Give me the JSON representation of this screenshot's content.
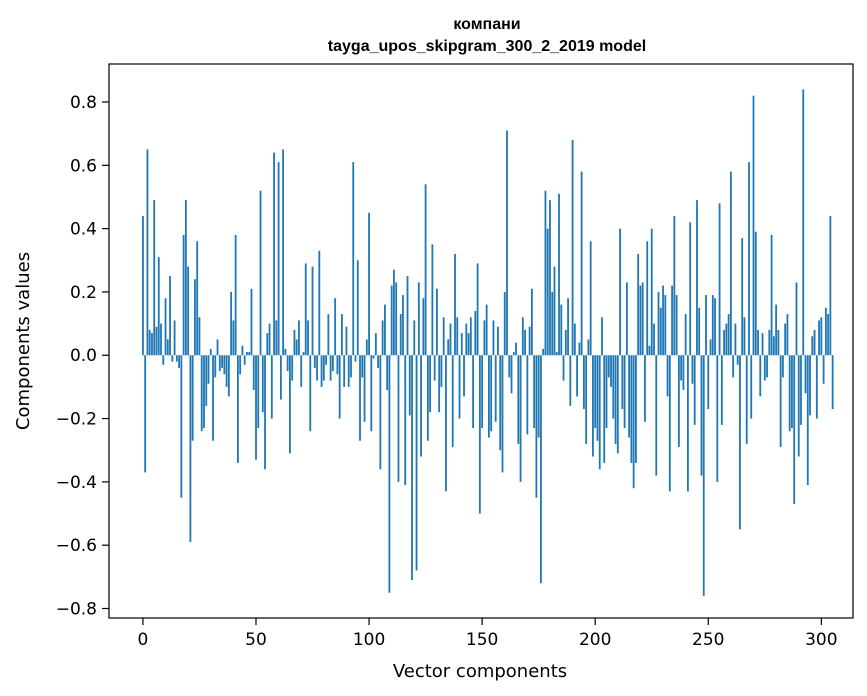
{
  "chart_data": {
    "type": "bar",
    "title": "компани",
    "subtitle": "tayga_upos_skipgram_300_2_2019 model",
    "xlabel": "Vector components",
    "ylabel": "Components values",
    "xlim": [
      -15,
      314
    ],
    "ylim": [
      -0.83,
      0.92
    ],
    "xticks": [
      0,
      50,
      100,
      150,
      200,
      250,
      300
    ],
    "xtick_labels": [
      "0",
      "50",
      "100",
      "150",
      "200",
      "250",
      "300"
    ],
    "yticks": [
      0.8,
      0.6,
      0.4,
      0.2,
      0.0,
      -0.2,
      -0.4,
      -0.6,
      -0.8
    ],
    "ytick_labels": [
      "0.8",
      "0.6",
      "0.4",
      "0.2",
      "0.0",
      "−0.2",
      "−0.4",
      "−0.6",
      "−0.8"
    ],
    "grid": false,
    "color": "#1f77b4",
    "x_start": 0,
    "values": [
      0.44,
      -0.37,
      0.65,
      0.08,
      0.07,
      0.49,
      0.09,
      0.31,
      0.1,
      -0.03,
      0.18,
      0.05,
      0.25,
      -0.02,
      0.11,
      -0.02,
      -0.04,
      -0.45,
      0.38,
      0.49,
      0.28,
      -0.59,
      -0.27,
      0.24,
      0.36,
      0.12,
      -0.24,
      -0.23,
      -0.16,
      -0.09,
      0.02,
      -0.27,
      -0.07,
      0.05,
      -0.05,
      -0.04,
      -0.06,
      -0.1,
      -0.13,
      0.2,
      0.11,
      0.38,
      -0.34,
      -0.06,
      0.03,
      -0.03,
      0.01,
      0.01,
      0.21,
      -0.11,
      -0.33,
      -0.23,
      0.52,
      -0.18,
      -0.36,
      0.07,
      0.1,
      -0.2,
      0.64,
      0.11,
      0.61,
      -0.14,
      0.65,
      0.02,
      -0.05,
      -0.31,
      -0.08,
      0.08,
      0.05,
      0.11,
      -0.1,
      0.01,
      0.29,
      0.11,
      -0.24,
      0.28,
      -0.04,
      -0.08,
      0.33,
      -0.1,
      -0.08,
      -0.03,
      0.13,
      -0.08,
      -0.05,
      0.18,
      -0.06,
      -0.2,
      0.13,
      -0.1,
      0.09,
      -0.1,
      -0.07,
      0.61,
      -0.02,
      0.3,
      -0.27,
      -0.07,
      -0.21,
      0.05,
      0.45,
      -0.24,
      -0.01,
      0.07,
      -0.04,
      -0.36,
      0.11,
      0.16,
      -0.11,
      -0.75,
      0.22,
      0.27,
      0.23,
      -0.4,
      0.13,
      0.19,
      -0.41,
      0.25,
      -0.19,
      -0.71,
      0.11,
      -0.68,
      0.23,
      -0.32,
      0.18,
      0.54,
      -0.27,
      -0.18,
      0.35,
      -0.08,
      0.21,
      -0.18,
      -0.1,
      0.12,
      -0.43,
      0.05,
      0.1,
      -0.29,
      0.32,
      0.12,
      -0.2,
      0.07,
      -0.13,
      0.1,
      0.07,
      0.12,
      -0.23,
      0.14,
      0.29,
      -0.5,
      -0.23,
      0.11,
      0.16,
      -0.26,
      -0.24,
      0.11,
      -0.21,
      0.09,
      -0.3,
      -0.37,
      0.2,
      0.71,
      -0.07,
      -0.12,
      0.01,
      0.04,
      -0.28,
      -0.4,
      0.12,
      0.08,
      -0.25,
      0.09,
      0.21,
      -0.23,
      -0.45,
      -0.26,
      -0.72,
      0.02,
      0.52,
      0.4,
      0.49,
      0.2,
      0.28,
      0.01,
      0.51,
      0.16,
      -0.08,
      0.08,
      0.18,
      -0.16,
      0.68,
      0.1,
      -0.13,
      0.04,
      0.58,
      -0.17,
      -0.28,
      0.05,
      0.36,
      -0.32,
      -0.23,
      -0.27,
      -0.36,
      0.12,
      -0.34,
      -0.23,
      -0.07,
      -0.1,
      -0.2,
      -0.28,
      -0.31,
      0.4,
      -0.17,
      -0.23,
      0.23,
      -0.26,
      -0.34,
      -0.42,
      -0.34,
      0.32,
      0.22,
      0.23,
      -0.21,
      0.36,
      0.03,
      0.4,
      0.1,
      -0.38,
      0.2,
      0.15,
      0.22,
      0.19,
      -0.13,
      -0.43,
      0.22,
      0.44,
      0.19,
      -0.29,
      -0.08,
      -0.11,
      0.13,
      -0.43,
      0.42,
      -0.09,
      -0.22,
      0.49,
      0.15,
      -0.38,
      -0.76,
      0.19,
      -0.17,
      0.05,
      0.19,
      0.18,
      -0.4,
      0.48,
      -0.22,
      0.08,
      0.1,
      0.13,
      0.58,
      -0.07,
      0.1,
      -0.03,
      -0.55,
      0.37,
      0.12,
      -0.28,
      0.61,
      -0.2,
      0.82,
      0.39,
      0.08,
      -0.13,
      0.07,
      -0.08,
      -0.07,
      0.08,
      0.38,
      0.06,
      0.16,
      0.08,
      -0.29,
      -0.07,
      0.1,
      0.13,
      -0.24,
      -0.23,
      -0.47,
      0.23,
      -0.32,
      -0.22,
      0.84,
      -0.12,
      -0.41,
      -0.19,
      0.06,
      0.08,
      -0.2,
      0.11,
      0.12,
      -0.09,
      0.15,
      0.13,
      0.44,
      -0.17
    ]
  }
}
